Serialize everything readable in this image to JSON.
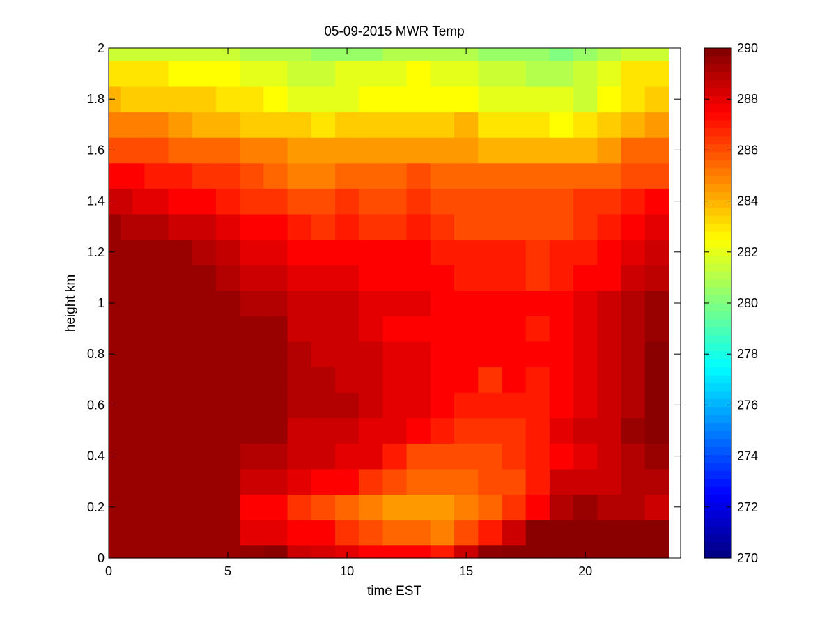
{
  "chart_data": {
    "type": "heatmap",
    "title": "05-09-2015 MWR Temp",
    "xlabel": "time EST",
    "ylabel": "height km",
    "xlim": [
      0,
      24
    ],
    "ylim": [
      0,
      2
    ],
    "x_ticks": [
      0,
      5,
      10,
      15,
      20
    ],
    "y_ticks": [
      0,
      0.2,
      0.4,
      0.6,
      0.8,
      1,
      1.2,
      1.4,
      1.6,
      1.8,
      2
    ],
    "x_tick_labels": [
      "0",
      "5",
      "10",
      "15",
      "20"
    ],
    "y_tick_labels": [
      "0",
      "0.2",
      "0.4",
      "0.6",
      "0.8",
      "1",
      "1.2",
      "1.4",
      "1.6",
      "1.8",
      "2"
    ],
    "colorbar": {
      "colormap": "jet",
      "range": [
        270,
        290
      ],
      "ticks": [
        270,
        272,
        274,
        276,
        278,
        280,
        282,
        284,
        286,
        288,
        290
      ],
      "tick_labels": [
        "270",
        "272",
        "274",
        "276",
        "278",
        "280",
        "282",
        "284",
        "286",
        "288",
        "290"
      ]
    },
    "time_bins_start": [
      0.0,
      0.5,
      1.0,
      1.5,
      2.5,
      3.5,
      4.5,
      5.5,
      6.5,
      7.5,
      8.5,
      9.5,
      10.5,
      11.5,
      12.5,
      13.5,
      14.5,
      15.5,
      16.5,
      17.5,
      18.5,
      19.5,
      20.5,
      21.5,
      22.5
    ],
    "time_bins_end": [
      0.5,
      1.0,
      1.5,
      2.5,
      3.5,
      4.5,
      5.5,
      6.5,
      7.5,
      8.5,
      9.5,
      10.5,
      11.5,
      12.5,
      13.5,
      14.5,
      15.5,
      16.5,
      17.5,
      18.5,
      19.5,
      20.5,
      21.5,
      22.5,
      23.5
    ],
    "height_bins_start": [
      0.0,
      0.05,
      0.15,
      0.25,
      0.35,
      0.45,
      0.55,
      0.65,
      0.75,
      0.85,
      0.95,
      1.05,
      1.15,
      1.25,
      1.35,
      1.45,
      1.55,
      1.65,
      1.75,
      1.85,
      1.95
    ],
    "height_bins_end": [
      0.05,
      0.15,
      0.25,
      0.35,
      0.45,
      0.55,
      0.65,
      0.75,
      0.85,
      0.95,
      1.05,
      1.15,
      1.25,
      1.35,
      1.45,
      1.55,
      1.65,
      1.75,
      1.85,
      1.95,
      2.0
    ],
    "values": [
      [
        289.5,
        289.5,
        289.5,
        289.5,
        289.5,
        289.5,
        289.5,
        289.6,
        289.8,
        288.5,
        288.3,
        288.0,
        287.5,
        287.5,
        287.5,
        287.0,
        288.5,
        289.7,
        289.8,
        289.8,
        289.8,
        289.8,
        289.8,
        289.8,
        289.8
      ],
      [
        289.5,
        289.5,
        289.5,
        289.5,
        289.5,
        289.5,
        289.5,
        288.0,
        288.0,
        287.5,
        287.5,
        286.5,
        286.0,
        285.5,
        285.5,
        285.0,
        286.0,
        287.0,
        288.5,
        289.8,
        289.8,
        289.8,
        289.8,
        289.8,
        289.8
      ],
      [
        289.5,
        289.5,
        289.5,
        289.5,
        289.5,
        289.5,
        289.5,
        287.5,
        287.5,
        286.5,
        286.0,
        285.5,
        285.0,
        284.5,
        284.5,
        284.5,
        285.0,
        285.5,
        286.5,
        287.5,
        289.0,
        289.5,
        289.0,
        289.0,
        288.5
      ],
      [
        289.5,
        289.5,
        289.5,
        289.5,
        289.5,
        289.5,
        289.5,
        288.5,
        288.5,
        288.0,
        287.5,
        287.5,
        286.5,
        286.0,
        285.5,
        285.5,
        285.5,
        286.0,
        286.0,
        287.0,
        288.5,
        288.5,
        288.5,
        289.0,
        289.0
      ],
      [
        289.5,
        289.5,
        289.5,
        289.5,
        289.5,
        289.5,
        289.5,
        289.0,
        289.0,
        288.5,
        288.5,
        288.0,
        288.0,
        287.0,
        286.0,
        286.0,
        286.0,
        286.0,
        286.5,
        287.0,
        287.5,
        288.0,
        288.5,
        289.0,
        289.5
      ],
      [
        289.5,
        289.5,
        289.5,
        289.5,
        289.5,
        289.5,
        289.5,
        289.5,
        289.5,
        288.5,
        288.5,
        288.5,
        288.0,
        288.0,
        287.5,
        287.0,
        286.5,
        286.5,
        286.5,
        287.0,
        288.0,
        288.5,
        288.5,
        289.5,
        289.8
      ],
      [
        289.5,
        289.5,
        289.5,
        289.5,
        289.5,
        289.5,
        289.5,
        289.5,
        289.5,
        289.0,
        289.0,
        289.0,
        288.5,
        288.0,
        288.0,
        287.5,
        287.0,
        287.0,
        287.0,
        287.0,
        287.5,
        288.0,
        288.5,
        289.0,
        289.8
      ],
      [
        289.5,
        289.5,
        289.5,
        289.5,
        289.5,
        289.5,
        289.5,
        289.5,
        289.5,
        289.0,
        289.0,
        288.5,
        288.5,
        288.0,
        288.0,
        287.5,
        287.5,
        286.5,
        287.5,
        287.0,
        287.5,
        288.0,
        288.5,
        289.0,
        289.8
      ],
      [
        289.5,
        289.5,
        289.5,
        289.5,
        289.5,
        289.5,
        289.5,
        289.5,
        289.5,
        289.0,
        288.5,
        288.5,
        288.5,
        288.0,
        288.0,
        287.5,
        287.5,
        287.5,
        287.5,
        287.5,
        287.5,
        288.0,
        288.5,
        289.0,
        289.8
      ],
      [
        289.5,
        289.5,
        289.5,
        289.5,
        289.5,
        289.5,
        289.5,
        289.5,
        289.5,
        288.5,
        288.5,
        288.5,
        288.0,
        287.5,
        287.5,
        287.5,
        287.5,
        287.5,
        287.5,
        287.0,
        287.5,
        288.0,
        288.5,
        289.0,
        289.5
      ],
      [
        289.5,
        289.5,
        289.5,
        289.5,
        289.5,
        289.5,
        289.5,
        289.0,
        289.0,
        288.5,
        288.5,
        288.5,
        288.0,
        288.0,
        288.0,
        287.5,
        287.5,
        287.5,
        287.5,
        287.5,
        287.5,
        288.0,
        288.5,
        289.0,
        289.5
      ],
      [
        289.5,
        289.5,
        289.5,
        289.5,
        289.5,
        289.5,
        289.0,
        288.5,
        288.5,
        288.0,
        288.0,
        288.0,
        287.5,
        287.5,
        287.5,
        287.5,
        287.0,
        287.0,
        287.0,
        286.5,
        287.0,
        287.5,
        287.5,
        288.5,
        288.8
      ],
      [
        289.5,
        289.5,
        289.5,
        289.5,
        289.5,
        289.0,
        288.7,
        288.0,
        288.0,
        287.5,
        287.5,
        287.5,
        287.5,
        287.5,
        287.5,
        287.0,
        287.0,
        287.0,
        287.0,
        286.5,
        287.0,
        287.0,
        287.5,
        288.0,
        288.5
      ],
      [
        289.5,
        289.0,
        289.0,
        289.0,
        288.5,
        288.5,
        288.0,
        287.5,
        287.5,
        287.0,
        286.5,
        287.0,
        286.5,
        286.5,
        287.0,
        286.5,
        286.0,
        286.0,
        286.0,
        286.0,
        286.0,
        286.5,
        287.0,
        287.5,
        288.0
      ],
      [
        288.5,
        288.5,
        288.0,
        288.0,
        287.5,
        287.5,
        287.0,
        286.5,
        286.5,
        286.0,
        286.0,
        286.5,
        286.0,
        286.0,
        286.5,
        286.0,
        286.0,
        286.0,
        286.0,
        286.0,
        286.0,
        286.5,
        286.5,
        287.0,
        287.5
      ],
      [
        287.5,
        287.5,
        287.5,
        287.0,
        287.0,
        286.5,
        286.5,
        286.0,
        285.5,
        285.0,
        285.0,
        285.5,
        285.5,
        285.5,
        286.0,
        285.5,
        285.5,
        285.5,
        285.5,
        285.5,
        285.5,
        285.5,
        285.5,
        286.0,
        286.0
      ],
      [
        286.0,
        286.0,
        286.0,
        286.0,
        285.5,
        285.5,
        285.5,
        285.0,
        285.0,
        284.5,
        284.5,
        284.5,
        284.5,
        284.5,
        284.5,
        284.5,
        284.5,
        284.0,
        284.0,
        284.0,
        284.0,
        284.0,
        284.5,
        285.5,
        285.5
      ],
      [
        285.0,
        285.0,
        285.0,
        285.0,
        284.5,
        284.0,
        284.0,
        283.5,
        283.5,
        283.5,
        283.0,
        283.5,
        283.5,
        283.5,
        283.5,
        283.5,
        284.0,
        283.0,
        283.0,
        283.0,
        282.5,
        283.0,
        283.5,
        284.0,
        284.5
      ],
      [
        284.0,
        283.5,
        283.5,
        283.5,
        283.5,
        283.5,
        283.0,
        283.0,
        282.5,
        282.0,
        282.0,
        282.0,
        282.5,
        282.5,
        282.5,
        282.5,
        282.5,
        282.0,
        282.0,
        282.0,
        282.0,
        281.5,
        282.5,
        283.0,
        283.5
      ],
      [
        283.0,
        283.0,
        283.0,
        283.0,
        282.5,
        282.5,
        282.5,
        282.0,
        282.0,
        281.5,
        281.5,
        282.0,
        282.0,
        282.0,
        282.5,
        282.0,
        282.0,
        281.5,
        281.5,
        281.0,
        281.0,
        281.5,
        282.0,
        283.0,
        283.0
      ],
      [
        281.5,
        281.5,
        281.5,
        281.5,
        281.5,
        281.5,
        281.5,
        281.0,
        281.0,
        281.0,
        280.5,
        280.5,
        280.5,
        281.0,
        281.0,
        281.0,
        281.0,
        280.5,
        280.5,
        280.5,
        280.0,
        280.5,
        281.0,
        281.5,
        281.5
      ]
    ]
  }
}
